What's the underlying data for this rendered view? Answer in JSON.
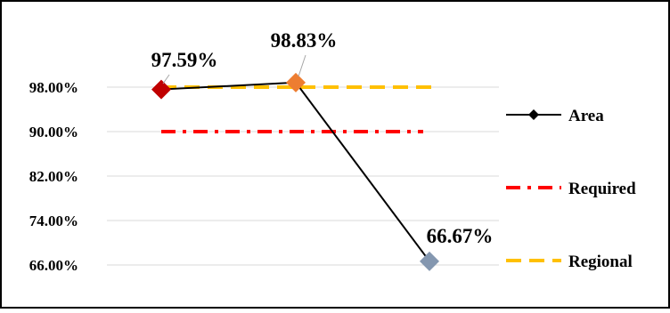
{
  "chart_data": {
    "type": "line",
    "title": "",
    "xlabel": "",
    "ylabel": "",
    "categories": [
      "",
      "",
      ""
    ],
    "ylim": [
      0.66,
      1.0
    ],
    "y_ticks": [
      "98.00%",
      "90.00%",
      "82.00%",
      "74.00%",
      "66.00%"
    ],
    "grid": true,
    "legend_position": "right",
    "series": [
      {
        "name": "Area",
        "values": [
          0.9759,
          0.9883,
          0.6667
        ],
        "data_labels": [
          "97.59%",
          "98.83%",
          "66.67%"
        ],
        "color": "#000000",
        "marker": "diamond",
        "marker_colors": [
          "#C00000",
          "#ED7D31",
          "#8497B0"
        ]
      },
      {
        "name": "Required",
        "values": [
          0.9,
          0.9,
          0.9
        ],
        "color": "#FF0000",
        "dash": "dash-dot"
      },
      {
        "name": "Regional",
        "values": [
          0.98,
          0.98,
          0.98
        ],
        "color": "#FFC000",
        "dash": "dash"
      }
    ]
  }
}
